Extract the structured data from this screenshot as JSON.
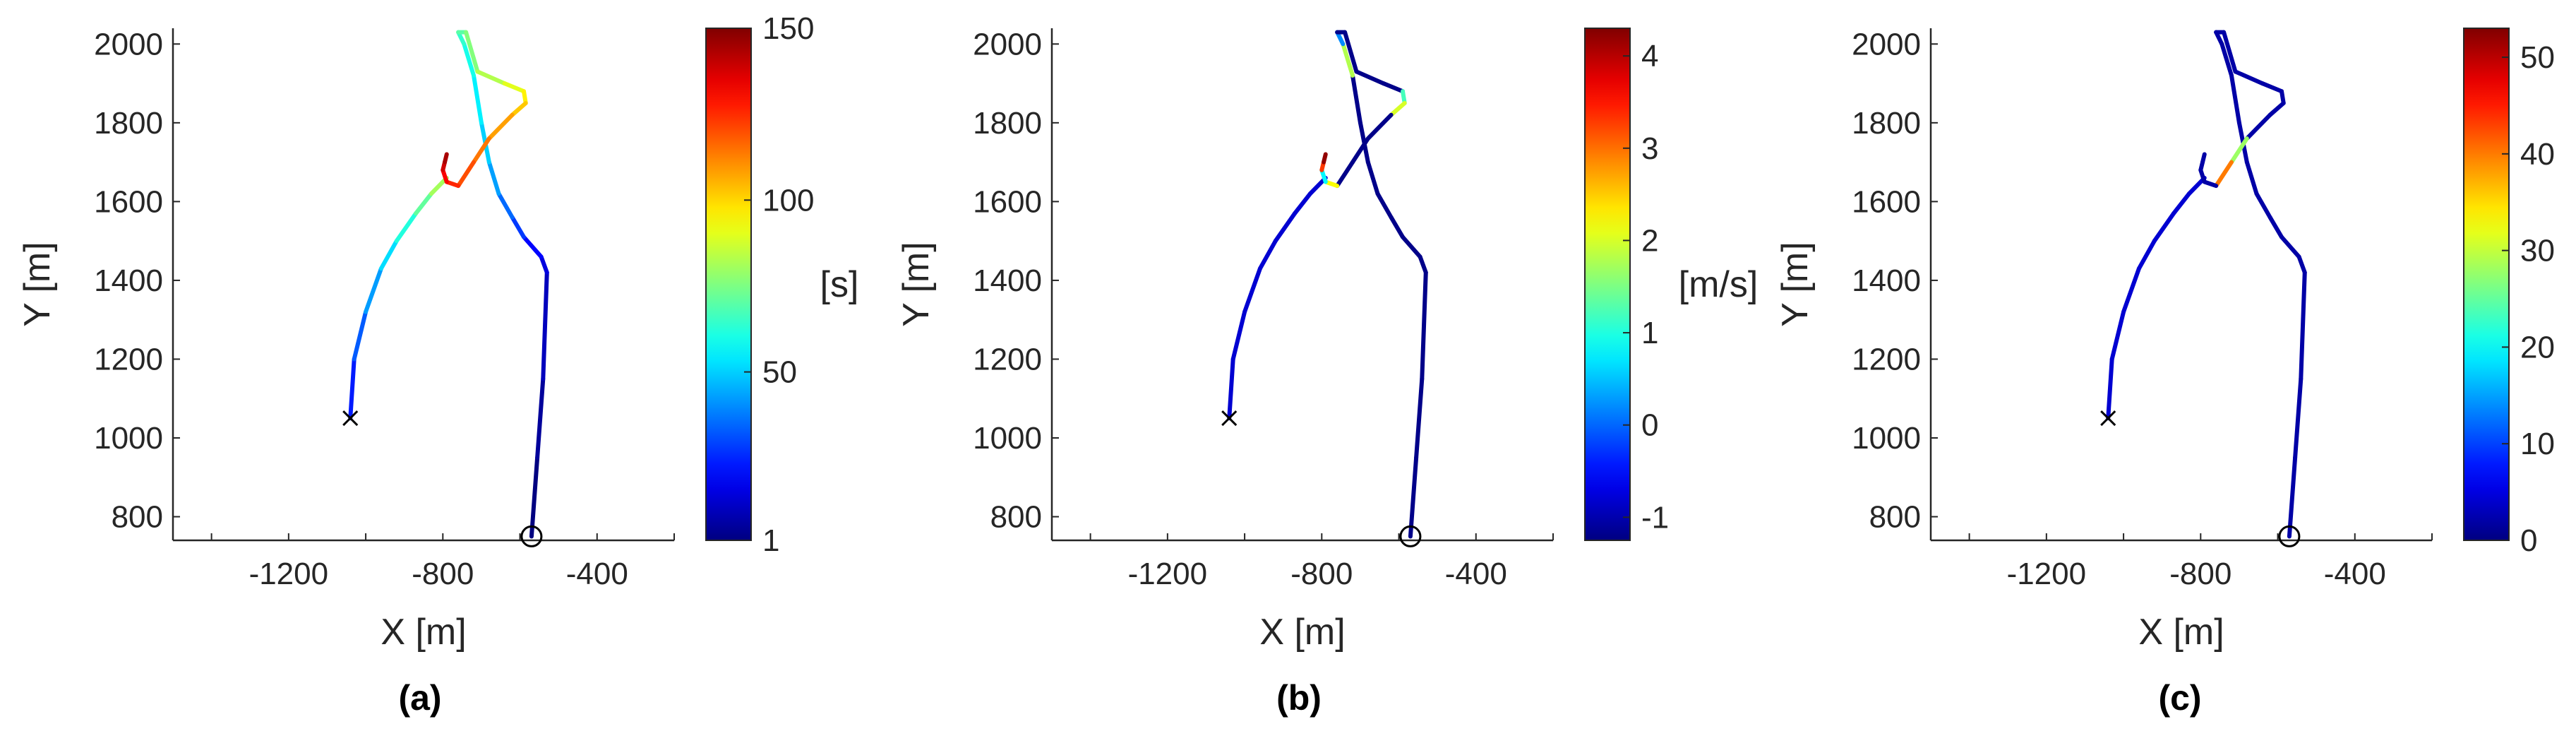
{
  "chart_data": [
    {
      "type": "line",
      "panel_label": "(a)",
      "xlabel": "X [m]",
      "ylabel": "Y [m]",
      "xlim": [
        -1500,
        -200
      ],
      "ylim": [
        740,
        2040
      ],
      "xticks": [
        "-1200",
        "-800",
        "-400"
      ],
      "yticks": [
        "800",
        "1000",
        "1200",
        "1400",
        "1600",
        "1800",
        "2000"
      ],
      "colorbar": {
        "label": "[s]",
        "range": [
          1,
          150
        ],
        "ticks": [
          "1",
          "50",
          "100",
          "150"
        ]
      },
      "color_values": [
        1,
        5,
        10,
        15,
        20,
        28,
        35,
        43,
        50,
        55,
        60,
        64,
        70,
        76,
        83,
        90,
        96,
        102,
        108,
        114,
        120,
        126,
        132,
        138,
        144,
        150
      ]
    },
    {
      "type": "line",
      "panel_label": "(b)",
      "xlabel": "X [m]",
      "ylabel": "Y [m]",
      "xlim": [
        -1500,
        -200
      ],
      "ylim": [
        740,
        2040
      ],
      "xticks": [
        "-1200",
        "-800",
        "-400"
      ],
      "yticks": [
        "800",
        "1000",
        "1200",
        "1400",
        "1600",
        "1800",
        "2000"
      ],
      "colorbar": {
        "label": "[m/s]",
        "range": [
          -1.25,
          4.3
        ],
        "ticks": [
          "-1",
          "0",
          "1",
          "2",
          "3",
          "4"
        ]
      },
      "color_values": [
        -1.2,
        -1.2,
        -1.2,
        -1.2,
        -1.2,
        -1.2,
        -1.2,
        -1.2,
        -1.2,
        -1.2,
        1.8,
        0.2,
        -1.2,
        -1.2,
        -1.2,
        -1.2,
        1.2,
        2.0,
        -1.2,
        -1.2,
        -1.2,
        2.2,
        0.8,
        3.3,
        4.2,
        4.2
      ]
    },
    {
      "type": "line",
      "panel_label": "(c)",
      "xlabel": "X [m]",
      "ylabel": "Y [m]",
      "xlim": [
        -1500,
        -200
      ],
      "ylim": [
        740,
        2040
      ],
      "xticks": [
        "-1200",
        "-800",
        "-400"
      ],
      "yticks": [
        "800",
        "1000",
        "1200",
        "1400",
        "1600",
        "1800",
        "2000"
      ],
      "colorbar": {
        "label": "",
        "range": [
          0,
          53
        ],
        "ticks": [
          "0",
          "10",
          "20",
          "30",
          "40",
          "50"
        ]
      },
      "color_values": [
        2,
        2,
        2,
        2,
        2,
        2,
        2,
        2,
        2,
        2,
        2,
        2,
        2,
        2,
        2,
        2,
        2,
        2,
        2,
        28,
        40,
        2,
        2,
        2,
        2,
        2
      ]
    }
  ],
  "trajectory": {
    "x": [
      -570,
      -555,
      -540,
      -530,
      -545,
      -590,
      -620,
      -655,
      -680,
      -700,
      -720,
      -745,
      -760,
      -740,
      -710,
      -640,
      -590,
      -585,
      -620,
      -680,
      -720,
      -760,
      -790,
      -800,
      -795,
      -790
    ],
    "y": [
      750,
      950,
      1150,
      1420,
      1460,
      1510,
      1560,
      1620,
      1700,
      1800,
      1920,
      2000,
      2030,
      2030,
      1930,
      1900,
      1880,
      1850,
      1820,
      1760,
      1700,
      1640,
      1650,
      1680,
      1700,
      1720
    ],
    "start_x": -570,
    "start_y": 750,
    "end_x": -1040,
    "end_y": 1050
  },
  "other_branch": {
    "x": [
      -1040,
      -1030,
      -1000,
      -960,
      -920,
      -870,
      -830,
      -790
    ],
    "y": [
      1050,
      1200,
      1320,
      1430,
      1500,
      1570,
      1620,
      1660
    ]
  }
}
